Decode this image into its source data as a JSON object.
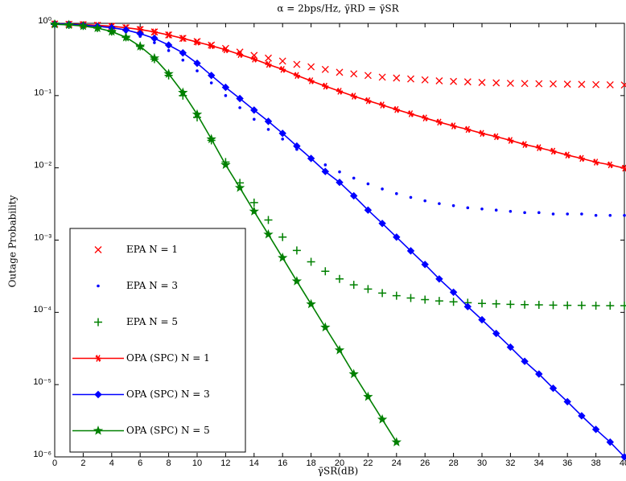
{
  "chart_data": {
    "type": "line",
    "title": "α = 2bps/Hz, γ̄RD = γ̄SR",
    "xlabel": "γ̄SR(dB)",
    "ylabel": "Outage Probability",
    "yscale": "log",
    "grid": false,
    "legend": "lower left",
    "x": [
      0,
      1,
      2,
      3,
      4,
      5,
      6,
      7,
      8,
      9,
      10,
      11,
      12,
      13,
      14,
      15,
      16,
      17,
      18,
      19,
      20,
      21,
      22,
      23,
      24,
      25,
      26,
      27,
      28,
      29,
      30,
      31,
      32,
      33,
      34,
      35,
      36,
      37,
      38,
      39,
      40
    ],
    "xlim": [
      0,
      40
    ],
    "xticks": [
      0,
      2,
      4,
      6,
      8,
      10,
      12,
      14,
      16,
      18,
      20,
      22,
      24,
      26,
      28,
      30,
      32,
      34,
      36,
      38,
      40
    ],
    "ylim": [
      1e-06,
      1
    ],
    "yticks": [
      {
        "value": 1e-06,
        "label": "10⁻⁶"
      },
      {
        "value": 1e-05,
        "label": "10⁻⁵"
      },
      {
        "value": 0.0001,
        "label": "10⁻⁴"
      },
      {
        "value": 0.001,
        "label": "10⁻³"
      },
      {
        "value": 0.01,
        "label": "10⁻²"
      },
      {
        "value": 0.1,
        "label": "10⁻¹"
      },
      {
        "value": 1,
        "label": "10⁰"
      }
    ],
    "series": [
      {
        "name": "EPA N = 1",
        "color": "#ff0000",
        "marker": "x",
        "line": false,
        "values": [
          0.98,
          0.97,
          0.96,
          0.94,
          0.91,
          0.87,
          0.82,
          0.76,
          0.69,
          0.62,
          0.56,
          0.5,
          0.45,
          0.4,
          0.36,
          0.33,
          0.3,
          0.27,
          0.25,
          0.23,
          0.21,
          0.2,
          0.19,
          0.18,
          0.175,
          0.17,
          0.165,
          0.16,
          0.157,
          0.155,
          0.152,
          0.15,
          0.148,
          0.147,
          0.146,
          0.145,
          0.144,
          0.143,
          0.142,
          0.141,
          0.14
        ]
      },
      {
        "name": "EPA N = 3",
        "color": "#0000ff",
        "marker": "dot",
        "line": false,
        "values": [
          0.97,
          0.96,
          0.94,
          0.9,
          0.84,
          0.76,
          0.66,
          0.54,
          0.42,
          0.31,
          0.22,
          0.15,
          0.1,
          0.068,
          0.047,
          0.034,
          0.025,
          0.018,
          0.014,
          0.011,
          0.0088,
          0.0072,
          0.006,
          0.0051,
          0.0044,
          0.0039,
          0.0035,
          0.0032,
          0.003,
          0.0028,
          0.0027,
          0.0026,
          0.0025,
          0.0024,
          0.0024,
          0.0023,
          0.0023,
          0.0023,
          0.0022,
          0.0022,
          0.0022
        ]
      },
      {
        "name": "EPA N = 5",
        "color": "#008000",
        "marker": "plus",
        "line": false,
        "values": [
          0.97,
          0.95,
          0.92,
          0.86,
          0.77,
          0.64,
          0.48,
          0.32,
          0.19,
          0.1,
          0.05,
          0.024,
          0.012,
          0.0062,
          0.0033,
          0.0019,
          0.0011,
          0.00072,
          0.0005,
          0.00037,
          0.00029,
          0.00024,
          0.00021,
          0.000185,
          0.00017,
          0.000158,
          0.00015,
          0.000144,
          0.00014,
          0.000136,
          0.000133,
          0.000131,
          0.000129,
          0.000128,
          0.000127,
          0.000126,
          0.000125,
          0.000125,
          0.000124,
          0.000124,
          0.000124
        ]
      },
      {
        "name": "OPA (SPC) N = 1",
        "color": "#ff0000",
        "marker": "asterisk",
        "line": true,
        "values": [
          0.98,
          0.97,
          0.96,
          0.94,
          0.91,
          0.87,
          0.82,
          0.76,
          0.69,
          0.62,
          0.55,
          0.49,
          0.43,
          0.37,
          0.32,
          0.27,
          0.23,
          0.19,
          0.16,
          0.135,
          0.115,
          0.098,
          0.085,
          0.074,
          0.064,
          0.056,
          0.049,
          0.043,
          0.038,
          0.034,
          0.03,
          0.027,
          0.024,
          0.021,
          0.019,
          0.017,
          0.015,
          0.0135,
          0.012,
          0.011,
          0.0099
        ]
      },
      {
        "name": "OPA (SPC) N = 3",
        "color": "#0000ff",
        "marker": "diamond",
        "line": true,
        "values": [
          0.98,
          0.97,
          0.94,
          0.91,
          0.87,
          0.81,
          0.72,
          0.62,
          0.5,
          0.39,
          0.28,
          0.19,
          0.13,
          0.091,
          0.063,
          0.044,
          0.03,
          0.02,
          0.0135,
          0.0089,
          0.0063,
          0.0041,
          0.0026,
          0.0017,
          0.0011,
          0.00071,
          0.00046,
          0.00029,
          0.00019,
          0.00012,
          7.9e-05,
          5.1e-05,
          3.3e-05,
          2.1e-05,
          1.4e-05,
          8.9e-06,
          5.8e-06,
          3.7e-06,
          2.4e-06,
          1.6e-06,
          1e-06
        ]
      },
      {
        "name": "OPA (SPC) N = 5",
        "color": "#008000",
        "marker": "star",
        "line": true,
        "values": [
          0.97,
          0.95,
          0.92,
          0.86,
          0.77,
          0.64,
          0.48,
          0.33,
          0.2,
          0.11,
          0.055,
          0.025,
          0.011,
          0.0053,
          0.0025,
          0.0012,
          0.00057,
          0.00027,
          0.00013,
          6.2e-05,
          3e-05,
          1.4e-05,
          6.8e-06,
          3.3e-06,
          1.6e-06,
          null,
          null,
          null,
          null,
          null,
          null,
          null,
          null,
          null,
          null,
          null,
          null,
          null,
          null,
          null,
          null
        ]
      }
    ]
  }
}
